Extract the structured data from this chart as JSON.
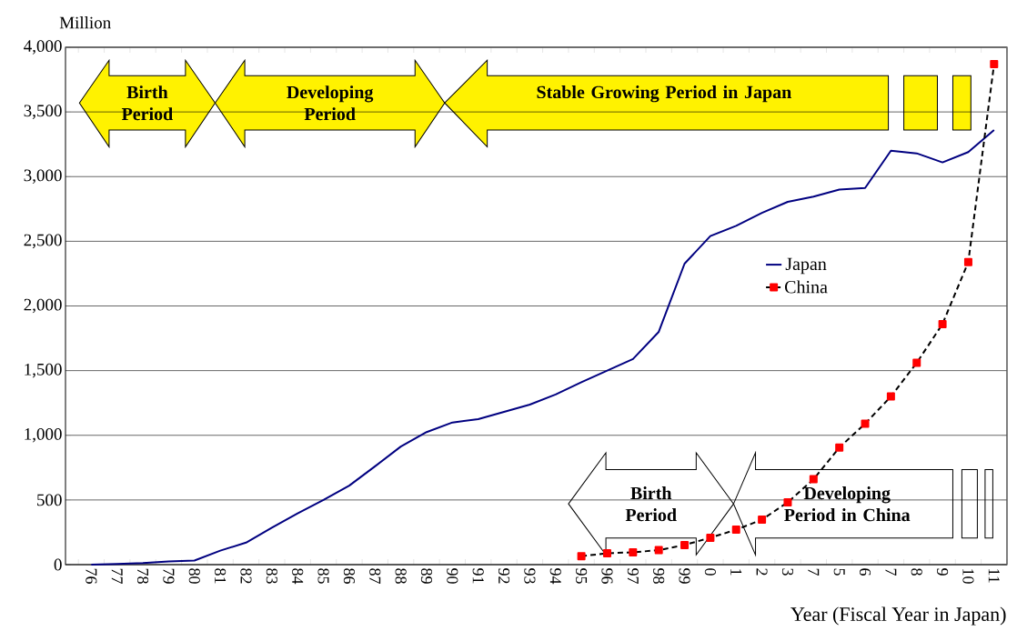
{
  "chart_data": {
    "type": "line",
    "ylabel": "Million",
    "xlabel": "Year (Fiscal Year in Japan)",
    "categories": [
      "76",
      "77",
      "78",
      "79",
      "80",
      "81",
      "82",
      "83",
      "84",
      "85",
      "86",
      "87",
      "88",
      "89",
      "90",
      "91",
      "92",
      "93",
      "94",
      "95",
      "96",
      "97",
      "98",
      "99",
      "0",
      "1",
      "2",
      "3",
      "7",
      "5",
      "6",
      "7",
      "8",
      "9",
      "10",
      "11"
    ],
    "series": [
      {
        "name": "Japan",
        "color": "#000080",
        "line_style": "solid",
        "marker": "none",
        "values": [
          0,
          5,
          12,
          25,
          32,
          108,
          170,
          285,
          396,
          500,
          611,
          760,
          913,
          1025,
          1099,
          1125,
          1181,
          1237,
          1315,
          1410,
          1500,
          1590,
          1800,
          2327,
          2540,
          2620,
          2720,
          2805,
          2845,
          2900,
          2912,
          3200,
          3180,
          3110,
          3190,
          3360
        ]
      },
      {
        "name": "China",
        "color": "#000000",
        "line_style": "dashed",
        "marker": "square",
        "values": [
          null,
          null,
          null,
          null,
          null,
          null,
          null,
          null,
          null,
          null,
          null,
          null,
          null,
          null,
          null,
          null,
          null,
          null,
          null,
          65,
          88,
          95,
          112,
          152,
          208,
          270,
          348,
          482,
          660,
          905,
          1090,
          1300,
          1560,
          1860,
          2340,
          3870
        ]
      }
    ],
    "ylim": [
      0,
      4000
    ],
    "yticks": [
      0,
      500,
      {
        "value": 1000,
        "label": "1,000"
      },
      {
        "value": 1500,
        "label": "1,500"
      },
      {
        "value": 2000,
        "label": "2,000"
      },
      {
        "value": 2500,
        "label": "2,500"
      },
      {
        "value": 3000,
        "label": "3,000"
      },
      {
        "value": 3500,
        "label": "3,500"
      },
      {
        "value": 4000,
        "label": "4,000"
      }
    ],
    "grid": "y",
    "legend": "right",
    "annotations": [
      "Birth Period",
      "Developing Period",
      "Stable Growing Period in Japan",
      "Birth Period",
      "Developing Period in China"
    ]
  }
}
